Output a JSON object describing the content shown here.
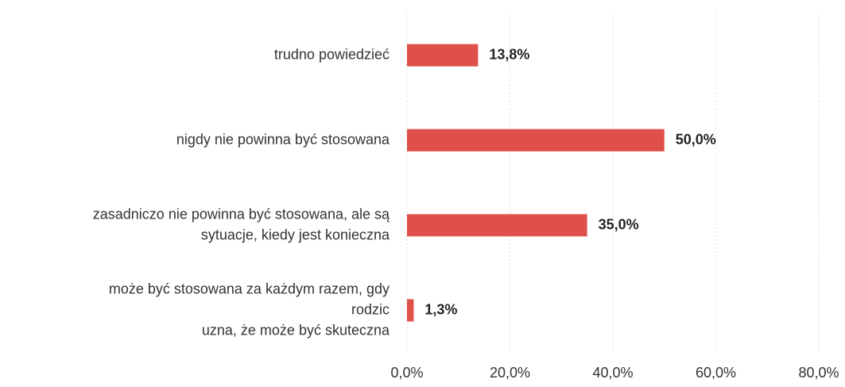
{
  "chart_data": {
    "type": "barh",
    "categories": [
      [
        "trudno powiedzieć"
      ],
      [
        "nigdy nie powinna być stosowana"
      ],
      [
        "zasadniczo nie powinna być stosowana, ale są",
        "sytuacje, kiedy jest konieczna"
      ],
      [
        "może być stosowana za każdym razem, gdy",
        "rodzic",
        "uzna, że może być skuteczna"
      ]
    ],
    "values": [
      13.8,
      50.0,
      35.0,
      1.3
    ],
    "value_labels": [
      "13,8%",
      "50,0%",
      "35,0%",
      "1,3%"
    ],
    "color": "#e0504a",
    "xlim": [
      0,
      80
    ],
    "xticks": [
      {
        "value": 0,
        "label": "0,0%"
      },
      {
        "value": 20,
        "label": "20,0%"
      },
      {
        "value": 40,
        "label": "40,0%"
      },
      {
        "value": 60,
        "label": "60,0%"
      },
      {
        "value": 80,
        "label": "80,0%"
      }
    ],
    "grid": true
  }
}
